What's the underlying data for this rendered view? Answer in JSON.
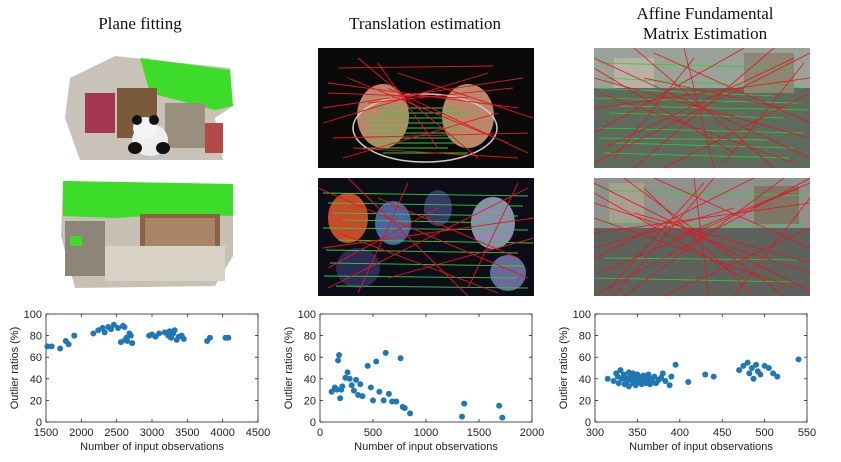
{
  "columns": [
    {
      "title_lines": [
        "Plane fitting"
      ]
    },
    {
      "title_lines": [
        "Translation estimation"
      ]
    },
    {
      "title_lines": [
        "Affine Fundamental",
        "Matrix Estimation"
      ]
    }
  ],
  "images": {
    "row1": [
      {
        "desc": "point cloud of room with panda, inliers green"
      },
      {
        "desc": "two hands matched with green and red lines"
      },
      {
        "desc": "street scene with green and red correspondence lines"
      }
    ],
    "row2": [
      {
        "desc": "point cloud of couch and wall, plane in green"
      },
      {
        "desc": "toy figures matched with green and red lines"
      },
      {
        "desc": "street scene with dense red outlier lines"
      }
    ]
  },
  "colors": {
    "dot": "#1f77b4",
    "inlier": "#2ecc40",
    "outlier": "#e6151f"
  },
  "chart_data": [
    {
      "type": "scatter",
      "xlabel": "Number of input observations",
      "ylabel": "Outlier ratios (%)",
      "xlim": [
        1500,
        4500
      ],
      "ylim": [
        0,
        100
      ],
      "xticks": [
        1500,
        2000,
        2500,
        3000,
        3500,
        4000,
        4500
      ],
      "yticks": [
        0,
        20,
        40,
        60,
        80,
        100
      ],
      "x": [
        1520,
        1580,
        1700,
        1780,
        1820,
        1900,
        2170,
        2240,
        2300,
        2330,
        2380,
        2420,
        2460,
        2520,
        2560,
        2590,
        2610,
        2620,
        2640,
        2650,
        2680,
        2700,
        2720,
        2960,
        3000,
        3050,
        3100,
        3180,
        3230,
        3250,
        3270,
        3300,
        3320,
        3350,
        3380,
        3420,
        3450,
        3780,
        3820,
        4040,
        4080
      ],
      "y": [
        70,
        70,
        68,
        75,
        72,
        80,
        82,
        85,
        87,
        83,
        88,
        86,
        90,
        87,
        74,
        89,
        88,
        76,
        78,
        75,
        82,
        80,
        73,
        80,
        81,
        79,
        82,
        83,
        80,
        84,
        78,
        82,
        85,
        76,
        79,
        80,
        77,
        75,
        78,
        78,
        78
      ]
    },
    {
      "type": "scatter",
      "xlabel": "Number of input observations",
      "ylabel": "Outlier ratios (%)",
      "xlim": [
        0,
        2000
      ],
      "ylim": [
        0,
        100
      ],
      "xticks": [
        0,
        500,
        1000,
        1500,
        2000
      ],
      "yticks": [
        0,
        20,
        40,
        60,
        80,
        100
      ],
      "x": [
        110,
        140,
        160,
        170,
        180,
        190,
        200,
        210,
        240,
        260,
        280,
        300,
        320,
        340,
        360,
        380,
        400,
        450,
        480,
        500,
        530,
        560,
        600,
        620,
        650,
        680,
        720,
        760,
        780,
        800,
        850,
        1340,
        1360,
        1690,
        1720
      ],
      "y": [
        28,
        32,
        30,
        57,
        62,
        22,
        30,
        33,
        41,
        46,
        40,
        34,
        29,
        39,
        25,
        35,
        24,
        52,
        32,
        20,
        56,
        28,
        20,
        64,
        26,
        19,
        19,
        59,
        14,
        13,
        8,
        5,
        17,
        15,
        4
      ]
    },
    {
      "type": "scatter",
      "xlabel": "Number of input observations",
      "ylabel": "Outlier ratios (%)",
      "xlim": [
        300,
        550
      ],
      "ylim": [
        0,
        100
      ],
      "xticks": [
        300,
        350,
        400,
        450,
        500,
        550
      ],
      "yticks": [
        0,
        20,
        40,
        60,
        80,
        100
      ],
      "x": [
        315,
        322,
        325,
        327,
        328,
        330,
        332,
        334,
        335,
        336,
        338,
        340,
        340,
        342,
        343,
        345,
        345,
        347,
        348,
        350,
        350,
        352,
        353,
        355,
        355,
        357,
        358,
        360,
        360,
        362,
        363,
        365,
        366,
        368,
        370,
        372,
        375,
        378,
        380,
        383,
        388,
        390,
        395,
        410,
        430,
        440,
        470,
        475,
        480,
        482,
        485,
        487,
        490,
        492,
        495,
        500,
        505,
        510,
        515,
        540
      ],
      "y": [
        40,
        38,
        45,
        42,
        36,
        48,
        40,
        44,
        35,
        41,
        38,
        46,
        33,
        42,
        39,
        45,
        36,
        40,
        34,
        44,
        38,
        42,
        37,
        40,
        35,
        43,
        39,
        36,
        41,
        38,
        44,
        35,
        40,
        37,
        42,
        36,
        39,
        41,
        45,
        38,
        34,
        42,
        53,
        37,
        44,
        42,
        48,
        52,
        55,
        45,
        50,
        40,
        53,
        47,
        44,
        52,
        50,
        45,
        42,
        58
      ]
    }
  ]
}
